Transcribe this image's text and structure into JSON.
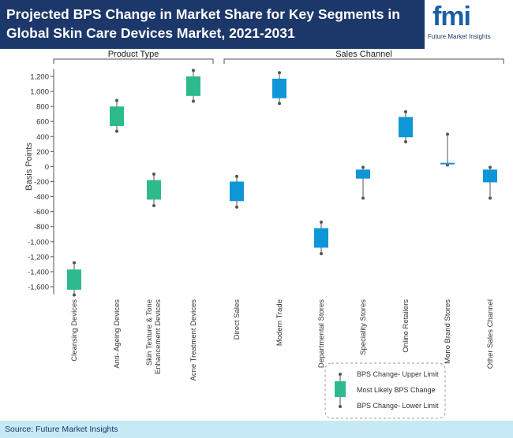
{
  "header": {
    "title": "Projected BPS Change in Market Share for Key Segments in Global Skin Care Devices Market, 2021-2031",
    "logo_mark": "fmi",
    "logo_text": "Future Market Insights"
  },
  "footer": {
    "source": "Source: Future Market Insights"
  },
  "colors": {
    "header_bg": "#1c3769",
    "product_type_box": "#2dbb8d",
    "sales_channel_box": "#0f96d8",
    "footer_bg": "#c6e9f5"
  },
  "chart_data": {
    "type": "box",
    "ylabel": "Basis Points",
    "ylim": [
      -1700,
      1300
    ],
    "yticks": [
      1200,
      1000,
      800,
      600,
      400,
      200,
      0,
      -200,
      -400,
      -600,
      -800,
      -1000,
      -1200,
      -1400,
      -1600
    ],
    "ytick_labels": [
      "1,200",
      "1,000",
      "800",
      "600",
      "400",
      "200",
      "0",
      "-200",
      "-400",
      "-600",
      "-800",
      "-1,000",
      "-1,200",
      "-1,400",
      "-1,600"
    ],
    "groups": [
      {
        "name": "Product Type",
        "start": 0,
        "end": 3
      },
      {
        "name": "Sales Channel",
        "start": 4,
        "end": 10
      }
    ],
    "categories": [
      "Cleansing Devices",
      "Anti- Ageing Devices",
      "Skin Texture & Tone Enhancement Devices",
      "Acne Treatment Devices",
      "Direct Sales",
      "Modern Trade",
      "Departmental Stores",
      "Speciality Stores",
      "Online Retailers",
      "Mono Brand Stores",
      "Other Sales Channel"
    ],
    "series": [
      {
        "category": "Cleansing Devices",
        "group": "Product Type",
        "upper": -1280,
        "box_high": -1370,
        "box_low": -1640,
        "lower": -1710
      },
      {
        "category": "Anti- Ageing Devices",
        "group": "Product Type",
        "upper": 880,
        "box_high": 800,
        "box_low": 540,
        "lower": 470
      },
      {
        "category": "Skin Texture & Tone Enhancement Devices",
        "group": "Product Type",
        "upper": -100,
        "box_high": -180,
        "box_low": -440,
        "lower": -520
      },
      {
        "category": "Acne Treatment Devices",
        "group": "Product Type",
        "upper": 1280,
        "box_high": 1200,
        "box_low": 940,
        "lower": 870
      },
      {
        "category": "Direct Sales",
        "group": "Sales Channel",
        "upper": -130,
        "box_high": -200,
        "box_low": -460,
        "lower": -540
      },
      {
        "category": "Modern Trade",
        "group": "Sales Channel",
        "upper": 1250,
        "box_high": 1170,
        "box_low": 910,
        "lower": 840
      },
      {
        "category": "Departmental Stores",
        "group": "Sales Channel",
        "upper": -740,
        "box_high": -820,
        "box_low": -1080,
        "lower": -1160
      },
      {
        "category": "Speciality Stores",
        "group": "Sales Channel",
        "upper": -10,
        "box_high": -40,
        "box_low": -160,
        "lower": -420
      },
      {
        "category": "Online Retailers",
        "group": "Sales Channel",
        "upper": 730,
        "box_high": 660,
        "box_low": 390,
        "lower": 330
      },
      {
        "category": "Mono Brand Stores",
        "group": "Sales Channel",
        "upper": 430,
        "box_high": 50,
        "box_low": 40,
        "lower": 20
      },
      {
        "category": "Other Sales Channel",
        "group": "Sales Channel",
        "upper": -10,
        "box_high": -40,
        "box_low": -210,
        "lower": -420
      }
    ],
    "legend": [
      {
        "label": "BPS Change- Upper Limit"
      },
      {
        "label": "Most Likely BPS Change"
      },
      {
        "label": "BPS Change- Lower Limit"
      }
    ],
    "legend_position": "bottom-right",
    "grid": false
  }
}
